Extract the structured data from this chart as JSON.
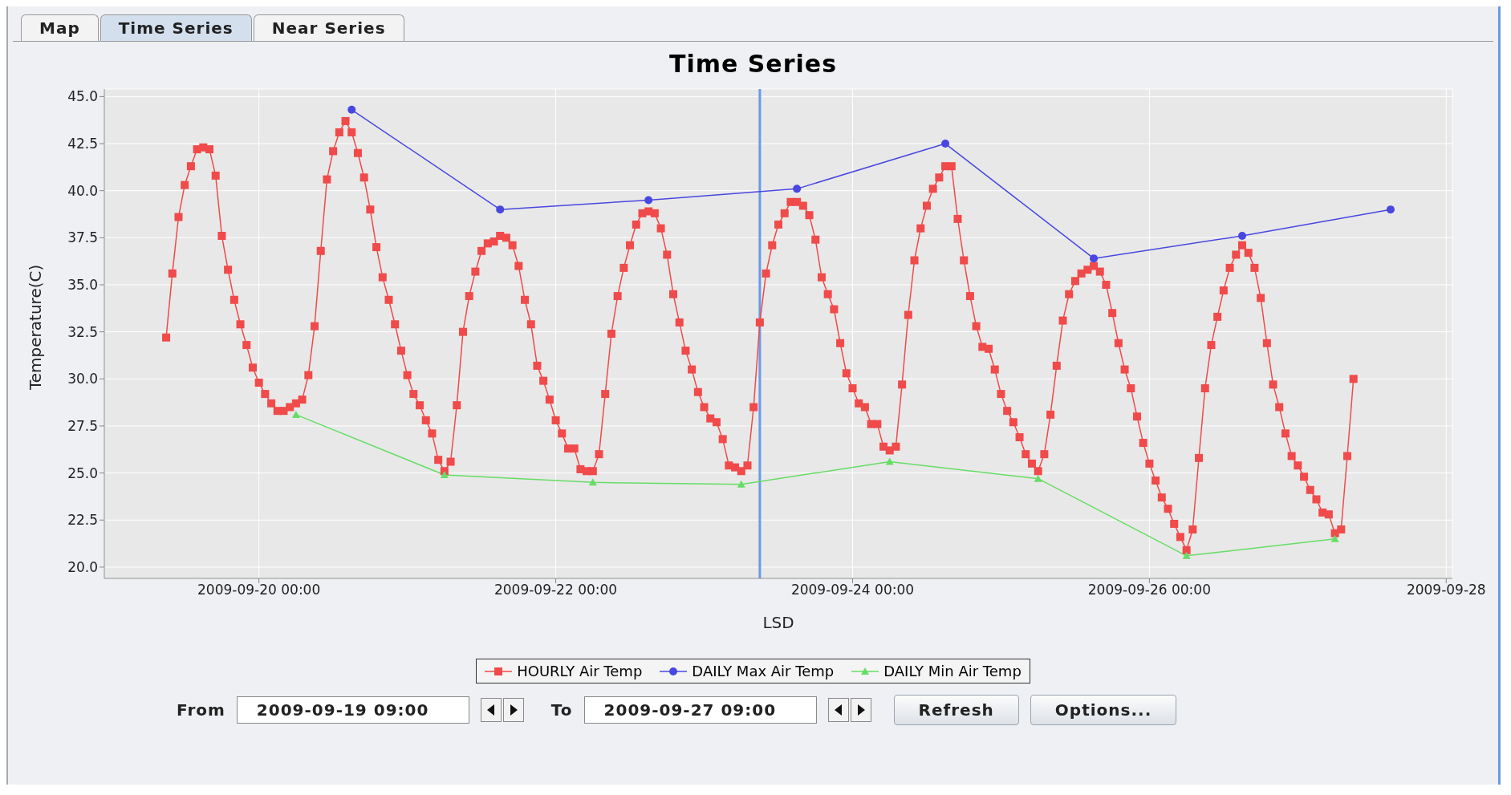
{
  "chart_data": {
    "type": "line",
    "title": "Time Series",
    "xlabel": "LSD",
    "ylabel": "Temperature(C)",
    "xlim": [
      "2009-09-18T23:00",
      "2009-09-28T01:00"
    ],
    "xticks": [
      {
        "value": "2009-09-20T00:00",
        "label": "2009-09-20 00:00"
      },
      {
        "value": "2009-09-22T00:00",
        "label": "2009-09-22 00:00"
      },
      {
        "value": "2009-09-24T00:00",
        "label": "2009-09-24 00:00"
      },
      {
        "value": "2009-09-26T00:00",
        "label": "2009-09-26 00:00"
      },
      {
        "value": "2009-09-28T00:00",
        "label": "2009-09-28"
      }
    ],
    "ylim": [
      19.4,
      45.4
    ],
    "yticks": [
      {
        "value": 20,
        "label": "20.0"
      },
      {
        "value": 22.5,
        "label": "22.5"
      },
      {
        "value": 25,
        "label": "25.0"
      },
      {
        "value": 27.5,
        "label": "27.5"
      },
      {
        "value": 30,
        "label": "30.0"
      },
      {
        "value": 32.5,
        "label": "32.5"
      },
      {
        "value": 35,
        "label": "35.0"
      },
      {
        "value": 37.5,
        "label": "37.5"
      },
      {
        "value": 40,
        "label": "40.0"
      },
      {
        "value": 42.5,
        "label": "42.5"
      },
      {
        "value": 45,
        "label": "45.0"
      }
    ],
    "grid": true,
    "legend": "bottom",
    "line_style": "solid",
    "ref_lines": [
      {
        "axis": "x",
        "value": "2009-09-23T09:00",
        "color": "#6a9ae8"
      }
    ],
    "annotations": [
      "Map",
      "Time Series",
      "Near Series",
      "From",
      "2009-09-19 09:00",
      "To",
      "2009-09-27 09:00",
      "Refresh",
      "Options..."
    ],
    "series": [
      {
        "name": "HOURLY Air Temp",
        "color": "#f04a4a",
        "marker": "square",
        "x": [
          "2009-09-19T09:00",
          "2009-09-19T10:00",
          "2009-09-19T11:00",
          "2009-09-19T12:00",
          "2009-09-19T13:00",
          "2009-09-19T14:00",
          "2009-09-19T15:00",
          "2009-09-19T16:00",
          "2009-09-19T17:00",
          "2009-09-19T18:00",
          "2009-09-19T19:00",
          "2009-09-19T20:00",
          "2009-09-19T21:00",
          "2009-09-19T22:00",
          "2009-09-19T23:00",
          "2009-09-20T00:00",
          "2009-09-20T01:00",
          "2009-09-20T02:00",
          "2009-09-20T03:00",
          "2009-09-20T04:00",
          "2009-09-20T05:00",
          "2009-09-20T06:00",
          "2009-09-20T07:00",
          "2009-09-20T08:00",
          "2009-09-20T09:00",
          "2009-09-20T10:00",
          "2009-09-20T11:00",
          "2009-09-20T12:00",
          "2009-09-20T13:00",
          "2009-09-20T14:00",
          "2009-09-20T15:00",
          "2009-09-20T16:00",
          "2009-09-20T17:00",
          "2009-09-20T18:00",
          "2009-09-20T19:00",
          "2009-09-20T20:00",
          "2009-09-20T21:00",
          "2009-09-20T22:00",
          "2009-09-20T23:00",
          "2009-09-21T00:00",
          "2009-09-21T01:00",
          "2009-09-21T02:00",
          "2009-09-21T03:00",
          "2009-09-21T04:00",
          "2009-09-21T05:00",
          "2009-09-21T06:00",
          "2009-09-21T07:00",
          "2009-09-21T08:00",
          "2009-09-21T09:00",
          "2009-09-21T10:00",
          "2009-09-21T11:00",
          "2009-09-21T12:00",
          "2009-09-21T13:00",
          "2009-09-21T14:00",
          "2009-09-21T15:00",
          "2009-09-21T16:00",
          "2009-09-21T17:00",
          "2009-09-21T18:00",
          "2009-09-21T19:00",
          "2009-09-21T20:00",
          "2009-09-21T21:00",
          "2009-09-21T22:00",
          "2009-09-21T23:00",
          "2009-09-22T00:00",
          "2009-09-22T01:00",
          "2009-09-22T02:00",
          "2009-09-22T03:00",
          "2009-09-22T04:00",
          "2009-09-22T05:00",
          "2009-09-22T06:00",
          "2009-09-22T07:00",
          "2009-09-22T08:00",
          "2009-09-22T09:00",
          "2009-09-22T10:00",
          "2009-09-22T11:00",
          "2009-09-22T12:00",
          "2009-09-22T13:00",
          "2009-09-22T14:00",
          "2009-09-22T15:00",
          "2009-09-22T16:00",
          "2009-09-22T17:00",
          "2009-09-22T18:00",
          "2009-09-22T19:00",
          "2009-09-22T20:00",
          "2009-09-22T21:00",
          "2009-09-22T22:00",
          "2009-09-22T23:00",
          "2009-09-23T00:00",
          "2009-09-23T01:00",
          "2009-09-23T02:00",
          "2009-09-23T03:00",
          "2009-09-23T04:00",
          "2009-09-23T05:00",
          "2009-09-23T06:00",
          "2009-09-23T07:00",
          "2009-09-23T08:00",
          "2009-09-23T09:00",
          "2009-09-23T10:00",
          "2009-09-23T11:00",
          "2009-09-23T12:00",
          "2009-09-23T13:00",
          "2009-09-23T14:00",
          "2009-09-23T15:00",
          "2009-09-23T16:00",
          "2009-09-23T17:00",
          "2009-09-23T18:00",
          "2009-09-23T19:00",
          "2009-09-23T20:00",
          "2009-09-23T21:00",
          "2009-09-23T22:00",
          "2009-09-23T23:00",
          "2009-09-24T00:00",
          "2009-09-24T01:00",
          "2009-09-24T02:00",
          "2009-09-24T03:00",
          "2009-09-24T04:00",
          "2009-09-24T05:00",
          "2009-09-24T06:00",
          "2009-09-24T07:00",
          "2009-09-24T08:00",
          "2009-09-24T09:00",
          "2009-09-24T10:00",
          "2009-09-24T11:00",
          "2009-09-24T12:00",
          "2009-09-24T13:00",
          "2009-09-24T14:00",
          "2009-09-24T15:00",
          "2009-09-24T16:00",
          "2009-09-24T17:00",
          "2009-09-24T18:00",
          "2009-09-24T19:00",
          "2009-09-24T20:00",
          "2009-09-24T21:00",
          "2009-09-24T22:00",
          "2009-09-24T23:00",
          "2009-09-25T00:00",
          "2009-09-25T01:00",
          "2009-09-25T02:00",
          "2009-09-25T03:00",
          "2009-09-25T04:00",
          "2009-09-25T05:00",
          "2009-09-25T06:00",
          "2009-09-25T07:00",
          "2009-09-25T08:00",
          "2009-09-25T09:00",
          "2009-09-25T10:00",
          "2009-09-25T11:00",
          "2009-09-25T12:00",
          "2009-09-25T13:00",
          "2009-09-25T14:00",
          "2009-09-25T15:00",
          "2009-09-25T16:00",
          "2009-09-25T17:00",
          "2009-09-25T18:00",
          "2009-09-25T19:00",
          "2009-09-25T20:00",
          "2009-09-25T21:00",
          "2009-09-25T22:00",
          "2009-09-25T23:00",
          "2009-09-26T00:00",
          "2009-09-26T01:00",
          "2009-09-26T02:00",
          "2009-09-26T03:00",
          "2009-09-26T04:00",
          "2009-09-26T05:00",
          "2009-09-26T06:00",
          "2009-09-26T07:00",
          "2009-09-26T08:00",
          "2009-09-26T09:00",
          "2009-09-26T10:00",
          "2009-09-26T11:00",
          "2009-09-26T12:00",
          "2009-09-26T13:00",
          "2009-09-26T14:00",
          "2009-09-26T15:00",
          "2009-09-26T16:00",
          "2009-09-26T17:00",
          "2009-09-26T18:00",
          "2009-09-26T19:00",
          "2009-09-26T20:00",
          "2009-09-26T21:00",
          "2009-09-26T22:00",
          "2009-09-26T23:00",
          "2009-09-27T00:00",
          "2009-09-27T01:00",
          "2009-09-27T02:00",
          "2009-09-27T03:00",
          "2009-09-27T04:00",
          "2009-09-27T05:00",
          "2009-09-27T06:00",
          "2009-09-27T07:00",
          "2009-09-27T08:00",
          "2009-09-27T09:00"
        ],
        "values": [
          32.2,
          35.6,
          38.6,
          40.3,
          41.3,
          42.2,
          42.3,
          42.2,
          40.8,
          37.6,
          35.8,
          34.2,
          32.9,
          31.8,
          30.6,
          29.8,
          29.2,
          28.7,
          28.3,
          28.3,
          28.5,
          28.7,
          28.9,
          30.2,
          32.8,
          36.8,
          40.6,
          42.1,
          43.1,
          43.7,
          43.1,
          42.0,
          40.7,
          39.0,
          37.0,
          35.4,
          34.2,
          32.9,
          31.5,
          30.2,
          29.2,
          28.6,
          27.8,
          27.1,
          25.7,
          25.1,
          25.6,
          28.6,
          32.5,
          34.4,
          35.7,
          36.8,
          37.2,
          37.3,
          37.6,
          37.5,
          37.1,
          36.0,
          34.2,
          32.9,
          30.7,
          29.9,
          28.9,
          27.8,
          27.1,
          26.3,
          26.3,
          25.2,
          25.1,
          25.1,
          26.0,
          29.2,
          32.4,
          34.4,
          35.9,
          37.1,
          38.2,
          38.8,
          38.9,
          38.8,
          38.0,
          36.6,
          34.5,
          33.0,
          31.5,
          30.5,
          29.3,
          28.5,
          27.9,
          27.7,
          26.8,
          25.4,
          25.3,
          25.1,
          25.4,
          28.5,
          33.0,
          35.6,
          37.1,
          38.2,
          38.8,
          39.4,
          39.4,
          39.2,
          38.7,
          37.4,
          35.4,
          34.5,
          33.7,
          31.9,
          30.3,
          29.5,
          28.7,
          28.5,
          27.6,
          27.6,
          26.4,
          26.2,
          26.4,
          29.7,
          33.4,
          36.3,
          38.0,
          39.2,
          40.1,
          40.7,
          41.3,
          41.3,
          38.5,
          36.3,
          34.4,
          32.8,
          31.7,
          31.6,
          30.5,
          29.2,
          28.3,
          27.7,
          26.9,
          26.0,
          25.5,
          25.1,
          26.0,
          28.1,
          30.7,
          33.1,
          34.5,
          35.2,
          35.6,
          35.8,
          36.0,
          35.7,
          35.0,
          33.5,
          31.9,
          30.5,
          29.5,
          28.0,
          26.6,
          25.5,
          24.6,
          23.7,
          23.1,
          22.3,
          21.6,
          20.9,
          22.0,
          25.8,
          29.5,
          31.8,
          33.3,
          34.7,
          35.9,
          36.6,
          37.1,
          36.7,
          35.9,
          34.3,
          31.9,
          29.7,
          28.5,
          27.1,
          25.9,
          25.4,
          24.8,
          24.1,
          23.6,
          22.9,
          22.8,
          21.8,
          22.0,
          25.9,
          30.0
        ]
      },
      {
        "name": "DAILY Max Air Temp",
        "color": "#4848e0",
        "marker": "circle",
        "x": [
          "2009-09-20T15:00",
          "2009-09-21T15:00",
          "2009-09-22T15:00",
          "2009-09-23T15:00",
          "2009-09-24T15:00",
          "2009-09-25T15:00",
          "2009-09-26T15:00",
          "2009-09-27T15:00"
        ],
        "values": [
          44.3,
          39.0,
          39.5,
          40.1,
          42.5,
          36.4,
          37.6,
          39.0
        ]
      },
      {
        "name": "DAILY Min Air Temp",
        "color": "#66dd66",
        "marker": "triangle",
        "x": [
          "2009-09-20T06:00",
          "2009-09-21T06:00",
          "2009-09-22T06:00",
          "2009-09-23T06:00",
          "2009-09-24T06:00",
          "2009-09-25T06:00",
          "2009-09-26T06:00",
          "2009-09-27T06:00"
        ],
        "values": [
          28.1,
          24.9,
          24.5,
          24.4,
          25.6,
          24.7,
          20.6,
          21.5
        ]
      }
    ]
  }
}
